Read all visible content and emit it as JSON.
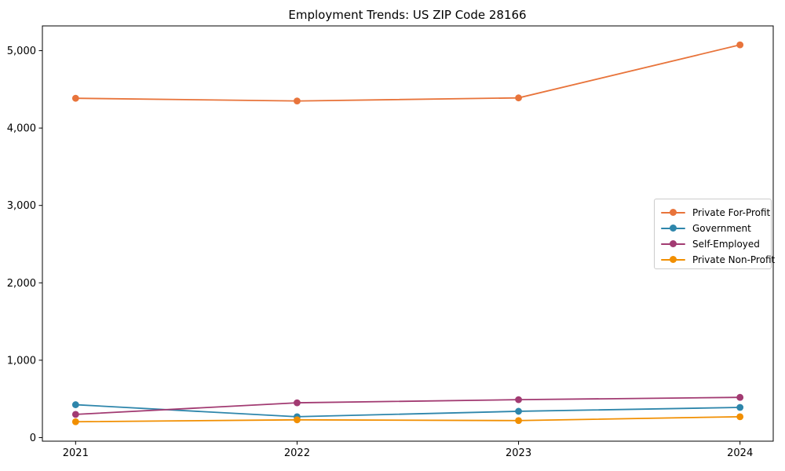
{
  "chart_data": {
    "type": "line",
    "title": "Employment Trends: US ZIP Code 28166",
    "categories": [
      "2021",
      "2022",
      "2023",
      "2024"
    ],
    "series": [
      {
        "name": "Private For-Profit",
        "color": "#E8743B",
        "values": [
          4385,
          4350,
          4390,
          5075
        ]
      },
      {
        "name": "Government",
        "color": "#2E86AB",
        "values": [
          425,
          270,
          340,
          390
        ]
      },
      {
        "name": "Self-Employed",
        "color": "#A23B72",
        "values": [
          300,
          450,
          490,
          520
        ]
      },
      {
        "name": "Private Non-Profit",
        "color": "#F18F01",
        "values": [
          205,
          230,
          220,
          270
        ]
      }
    ],
    "xlabel": "",
    "ylabel": "",
    "ylim": [
      -46,
      5320
    ],
    "yticks": [
      {
        "value": 0,
        "label": "0"
      },
      {
        "value": 1000,
        "label": "1,000"
      },
      {
        "value": 2000,
        "label": "2,000"
      },
      {
        "value": 3000,
        "label": "3,000"
      },
      {
        "value": 4000,
        "label": "4,000"
      },
      {
        "value": 5000,
        "label": "5,000"
      }
    ],
    "legend_position": "center right",
    "grid": false,
    "marker": "circle",
    "axis_color": "#000000",
    "background": "#ffffff"
  }
}
